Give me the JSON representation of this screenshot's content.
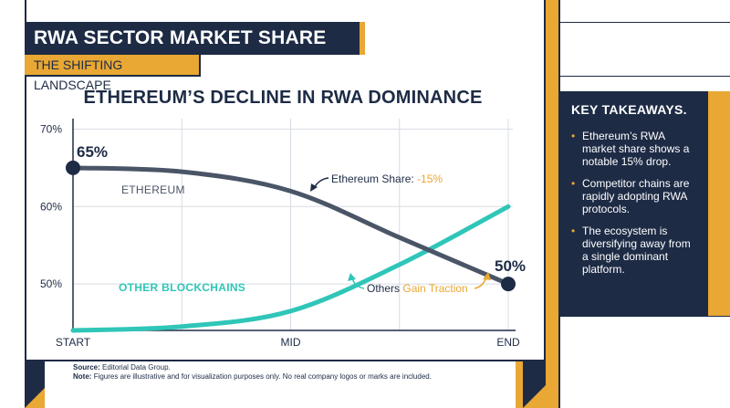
{
  "header": {
    "title": "RWA SECTOR MARKET SHARE ANALYSIS",
    "subtitle": "THE SHIFTING LANDSCAPE"
  },
  "colors": {
    "navy": "#1d2b45",
    "gold": "#e9a733",
    "teal": "#2fc6b8",
    "slate": "#4a5567",
    "grid": "#d8dce2"
  },
  "chart_data": {
    "type": "line",
    "title": "ETHEREUM’S DECLINE IN RWA DOMINANCE",
    "x": [
      "START",
      "MID",
      "END"
    ],
    "yticks": [
      "70%",
      "60%",
      "50%"
    ],
    "ylim": [
      44,
      71
    ],
    "grid": true,
    "series": [
      {
        "name": "ETHEREUM",
        "color": "#4a5567",
        "points": [
          [
            0,
            65
          ],
          [
            0.25,
            64.5
          ],
          [
            0.5,
            62
          ],
          [
            0.75,
            56
          ],
          [
            1,
            50
          ]
        ]
      },
      {
        "name": "OTHER BLOCKCHAINS",
        "color": "#2fc6b8",
        "points": [
          [
            0,
            44
          ],
          [
            0.25,
            44.5
          ],
          [
            0.5,
            46.5
          ],
          [
            0.75,
            52.5
          ],
          [
            1,
            60
          ]
        ]
      }
    ],
    "point_labels": {
      "start": "65%",
      "end": "50%"
    },
    "annotations": {
      "eth_prefix": "Ethereum Share: ",
      "eth_value": "-15%",
      "others_prefix": "Others ",
      "others_value": "Gain Traction"
    }
  },
  "takeaways": {
    "title": "KEY TAKEAWAYS.",
    "items": [
      "Ethereum’s RWA market share shows a notable 15% drop.",
      "Competitor chains are rapidly adopting RWA protocols.",
      "The ecosystem is diversifying away from a single dominant platform."
    ]
  },
  "footer": {
    "source_label": "Source:",
    "source_text": "Editorial Data Group.",
    "note_label": "Note:",
    "note_text": "Figures are illustrative and for visualization purposes only. No real company logos or marks are included."
  }
}
